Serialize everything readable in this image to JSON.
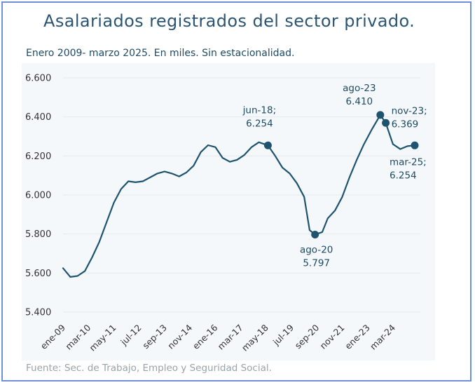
{
  "title": "Asalariados registrados del sector privado.",
  "subtitle": "Enero 2009- marzo 2025. En miles. Sin estacionalidad.",
  "source": "Fuente: Sec. de Trabajo, Empleo y Seguridad Social.",
  "colors": {
    "line": "#1f5470",
    "grid": "#e6eaee",
    "plot_background": "#f4f8fb",
    "frame": "#6f8fd6"
  },
  "chart_data": {
    "type": "line",
    "title": "Asalariados registrados del sector privado.",
    "subtitle": "Enero 2009- marzo 2025. En miles. Sin estacionalidad.",
    "xlabel": "",
    "ylabel": "",
    "ylim": [
      5400,
      6600
    ],
    "yticks": [
      5400,
      5600,
      5800,
      6000,
      6200,
      6400,
      6600
    ],
    "ytick_labels": [
      "5.400",
      "5.600",
      "5.800",
      "6.000",
      "6.200",
      "6.400",
      "6.600"
    ],
    "xlim": [
      "2009-01",
      "2025-03"
    ],
    "xtick_dates": [
      "2009-01",
      "2010-03",
      "2011-05",
      "2012-07",
      "2013-09",
      "2014-11",
      "2016-01",
      "2017-03",
      "2018-05",
      "2019-07",
      "2020-09",
      "2021-11",
      "2023-01",
      "2024-03"
    ],
    "xtick_labels": [
      "ene-09",
      "mar-10",
      "may-11",
      "jul-12",
      "sep-13",
      "nov-14",
      "ene-16",
      "mar-17",
      "may-18",
      "jul-19",
      "sep-20",
      "nov-21",
      "ene-23",
      "mar-24"
    ],
    "grid": "horizontal",
    "series": [
      {
        "points": [
          [
            "2009-01",
            5625
          ],
          [
            "2009-05",
            5580
          ],
          [
            "2009-09",
            5585
          ],
          [
            "2010-01",
            5610
          ],
          [
            "2010-05",
            5680
          ],
          [
            "2010-09",
            5760
          ],
          [
            "2011-01",
            5860
          ],
          [
            "2011-05",
            5960
          ],
          [
            "2011-09",
            6030
          ],
          [
            "2012-01",
            6070
          ],
          [
            "2012-05",
            6065
          ],
          [
            "2012-09",
            6070
          ],
          [
            "2013-01",
            6090
          ],
          [
            "2013-05",
            6110
          ],
          [
            "2013-09",
            6120
          ],
          [
            "2014-01",
            6110
          ],
          [
            "2014-05",
            6095
          ],
          [
            "2014-09",
            6115
          ],
          [
            "2015-01",
            6150
          ],
          [
            "2015-05",
            6220
          ],
          [
            "2015-09",
            6255
          ],
          [
            "2016-01",
            6245
          ],
          [
            "2016-05",
            6190
          ],
          [
            "2016-09",
            6170
          ],
          [
            "2017-01",
            6180
          ],
          [
            "2017-05",
            6205
          ],
          [
            "2017-09",
            6245
          ],
          [
            "2018-01",
            6270
          ],
          [
            "2018-06",
            6254
          ],
          [
            "2018-10",
            6200
          ],
          [
            "2019-02",
            6140
          ],
          [
            "2019-06",
            6110
          ],
          [
            "2019-10",
            6060
          ],
          [
            "2020-02",
            5990
          ],
          [
            "2020-05",
            5820
          ],
          [
            "2020-08",
            5797
          ],
          [
            "2020-12",
            5810
          ],
          [
            "2021-03",
            5880
          ],
          [
            "2021-07",
            5920
          ],
          [
            "2021-11",
            5990
          ],
          [
            "2022-03",
            6090
          ],
          [
            "2022-07",
            6180
          ],
          [
            "2022-11",
            6260
          ],
          [
            "2023-03",
            6330
          ],
          [
            "2023-08",
            6410
          ],
          [
            "2023-11",
            6369
          ],
          [
            "2024-03",
            6260
          ],
          [
            "2024-07",
            6235
          ],
          [
            "2024-11",
            6250
          ],
          [
            "2025-03",
            6254
          ]
        ]
      }
    ],
    "annotations": [
      {
        "date": "2018-06",
        "value": 6254,
        "lines": [
          "jun-18;",
          "6.254"
        ]
      },
      {
        "date": "2020-08",
        "value": 5797,
        "lines": [
          "ago-20",
          "5.797"
        ]
      },
      {
        "date": "2023-08",
        "value": 6410,
        "lines": [
          "ago-23",
          "6.410"
        ]
      },
      {
        "date": "2023-11",
        "value": 6369,
        "lines": [
          "nov-23;",
          "6.369"
        ]
      },
      {
        "date": "2025-03",
        "value": 6254,
        "lines": [
          "mar-25;",
          "6.254"
        ]
      }
    ]
  }
}
